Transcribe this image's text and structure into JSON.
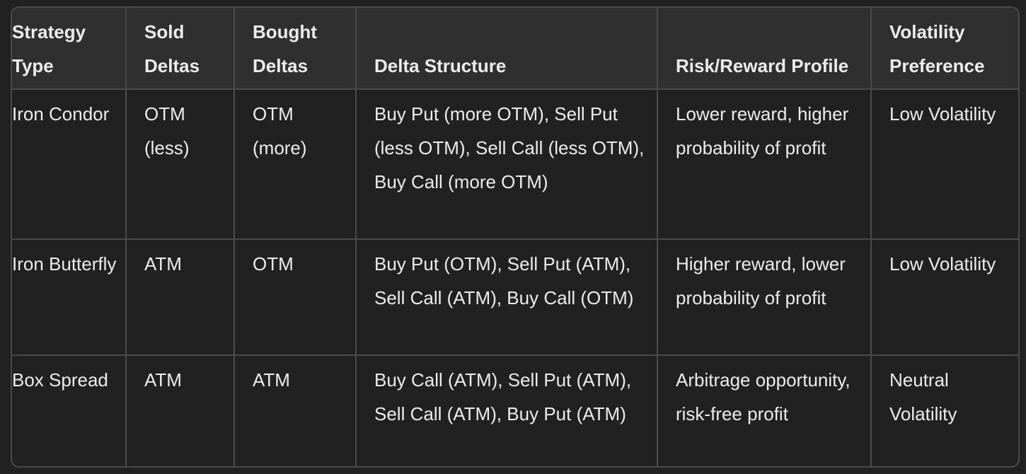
{
  "table": {
    "headers": [
      "Strategy Type",
      "Sold Deltas",
      "Bought Deltas",
      "Delta Structure",
      "Risk/Reward Profile",
      "Volatility Preference"
    ],
    "rows": [
      {
        "strategy_type": "Iron Condor",
        "sold_deltas": "OTM (less)",
        "bought_deltas": "OTM (more)",
        "delta_structure": "Buy Put (more OTM), Sell Put (less OTM), Sell Call (less OTM), Buy Call (more OTM)",
        "risk_reward": "Lower reward, higher probability of profit",
        "volatility": "Low Volatility"
      },
      {
        "strategy_type": "Iron Butterfly",
        "sold_deltas": "ATM",
        "bought_deltas": "OTM",
        "delta_structure": "Buy Put (OTM), Sell Put (ATM), Sell Call (ATM), Buy Call (OTM)",
        "risk_reward": "Higher reward, lower probability of profit",
        "volatility": "Low Volatility"
      },
      {
        "strategy_type": "Box Spread",
        "sold_deltas": "ATM",
        "bought_deltas": "ATM",
        "delta_structure": "Buy Call (ATM), Sell Put (ATM), Sell Call (ATM), Buy Put (ATM)",
        "risk_reward": "Arbitrage opportunity, risk-free profit",
        "volatility": "Neutral Volatility"
      }
    ]
  }
}
